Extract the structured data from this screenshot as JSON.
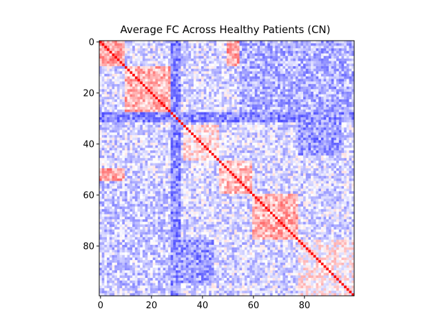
{
  "chart_data": {
    "type": "heatmap",
    "title": "Average FC Across Healthy Patients (CN)",
    "xlabel": "",
    "ylabel": "",
    "n_regions": 100,
    "xlim": [
      -0.5,
      99.5
    ],
    "ylim": [
      99.5,
      -0.5
    ],
    "x_ticks": [
      0,
      20,
      40,
      60,
      80
    ],
    "y_ticks": [
      0,
      20,
      40,
      60,
      80
    ],
    "value_range": [
      -1,
      1
    ],
    "colormap": "bwr",
    "colors": {
      "low": "#0000ff",
      "mid": "#ffffff",
      "high": "#ff0000"
    },
    "diagonal_value": 1.0,
    "grid": false,
    "legend": "none",
    "blocks": [
      {
        "rows": [
          0,
          10
        ],
        "cols": [
          0,
          10
        ],
        "mean": 0.35
      },
      {
        "rows": [
          10,
          29
        ],
        "cols": [
          10,
          29
        ],
        "mean": 0.3
      },
      {
        "rows": [
          30,
          33
        ],
        "cols": [
          30,
          33
        ],
        "mean": 0.1
      },
      {
        "rows": [
          33,
          47
        ],
        "cols": [
          33,
          47
        ],
        "mean": 0.15
      },
      {
        "rows": [
          47,
          60
        ],
        "cols": [
          47,
          60
        ],
        "mean": 0.25
      },
      {
        "rows": [
          60,
          78
        ],
        "cols": [
          60,
          78
        ],
        "mean": 0.3
      },
      {
        "rows": [
          78,
          100
        ],
        "cols": [
          78,
          100
        ],
        "mean": 0.05
      },
      {
        "rows": [
          0,
          10
        ],
        "cols": [
          50,
          57
        ],
        "mean": 0.35
      },
      {
        "rows": [
          50,
          57
        ],
        "cols": [
          0,
          10
        ],
        "mean": 0.35
      },
      {
        "rows": [
          15,
          28
        ],
        "cols": [
          60,
          75
        ],
        "mean": 0.2
      },
      {
        "rows": [
          60,
          75
        ],
        "cols": [
          15,
          28
        ],
        "mean": 0.2
      },
      {
        "rows": [
          0,
          100
        ],
        "cols": [
          28,
          32
        ],
        "mean": -0.45
      },
      {
        "rows": [
          28,
          32
        ],
        "cols": [
          0,
          100
        ],
        "mean": -0.45
      },
      {
        "rows": [
          78,
          95
        ],
        "cols": [
          0,
          45
        ],
        "mean": -0.4
      },
      {
        "rows": [
          0,
          45
        ],
        "cols": [
          78,
          95
        ],
        "mean": -0.4
      },
      {
        "rows": [
          0,
          28
        ],
        "cols": [
          55,
          100
        ],
        "mean": -0.3
      },
      {
        "rows": [
          55,
          100
        ],
        "cols": [
          0,
          28
        ],
        "mean": -0.2
      }
    ]
  }
}
